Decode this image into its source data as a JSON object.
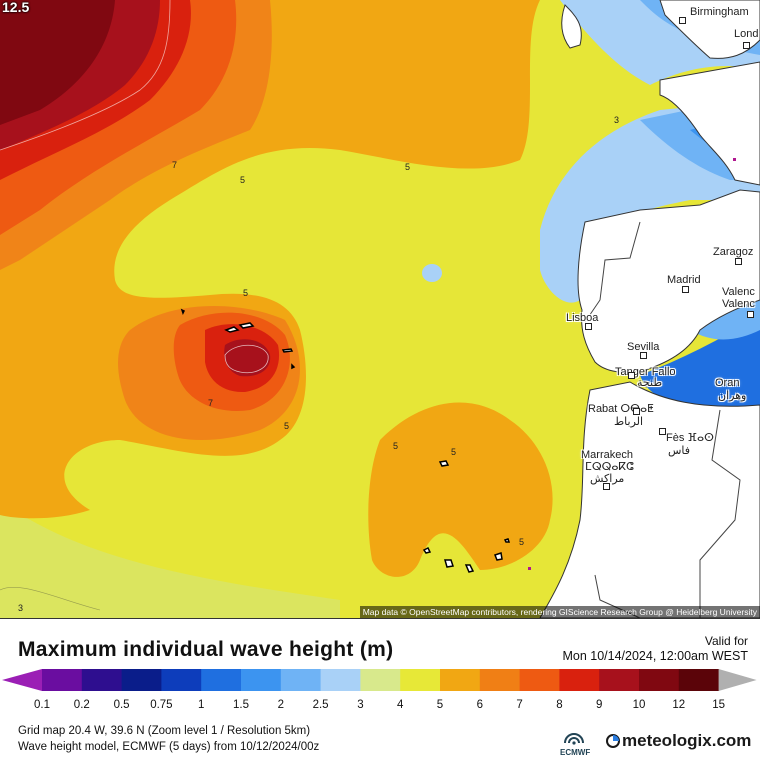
{
  "map": {
    "corner_value": "12.5",
    "attribution": "Map data © OpenStreetMap contributors, rendering GIScience Research Group @ Heidelberg University",
    "cities": [
      {
        "name": "Birmingham"
      },
      {
        "name": "Lond"
      },
      {
        "name": "Zaragoz"
      },
      {
        "name": "Madrid"
      },
      {
        "name": "Valenc Valenc"
      },
      {
        "name": "Lisboa"
      },
      {
        "name": "Sevilla"
      },
      {
        "name": "Tanger Fallo"
      },
      {
        "name": "طنجة"
      },
      {
        "name": "Oran"
      },
      {
        "name": "وهران"
      },
      {
        "name": "Rabat ⵔⴱⴰⵟ"
      },
      {
        "name": "الرباط"
      },
      {
        "name": "Fès ⴼⴰⵙ"
      },
      {
        "name": "فاس"
      },
      {
        "name": "Marrakech"
      },
      {
        "name": "ⵎⵕⵕⴰⴽⵛ"
      },
      {
        "name": "مراكش"
      }
    ],
    "contour_labels": [
      "7",
      "5",
      "5",
      "3",
      "5",
      "7",
      "5",
      "5",
      "5",
      "5",
      "3"
    ]
  },
  "legend": {
    "title": "Maximum individual wave height (m)",
    "valid_label": "Valid for",
    "valid_time": "Mon 10/14/2024, 12:00am WEST",
    "ticks": [
      "0.1",
      "0.2",
      "0.5",
      "0.75",
      "1",
      "1.5",
      "2",
      "2.5",
      "3",
      "4",
      "5",
      "6",
      "7",
      "8",
      "9",
      "10",
      "12",
      "15"
    ],
    "colors": [
      "#9b1fb5",
      "#6a0da0",
      "#2e0e8f",
      "#0a1d8a",
      "#0d3dbb",
      "#1f6fe0",
      "#3c94f0",
      "#6fb3f5",
      "#a9d1f7",
      "#d8e98c",
      "#e7e837",
      "#f1a713",
      "#f07f15",
      "#ee5a12",
      "#d9210e",
      "#a7111c",
      "#800811",
      "#5b0409",
      "#b0b0b0"
    ]
  },
  "info": {
    "line1": "Grid map 20.4 W, 39.6 N (Zoom level 1 / Resolution 5km)",
    "line2": "Wave height model, ECMWF (5 days) from 10/12/2024/00z",
    "ecmwf_label": "ECMWF",
    "brand": "meteologix.com"
  }
}
